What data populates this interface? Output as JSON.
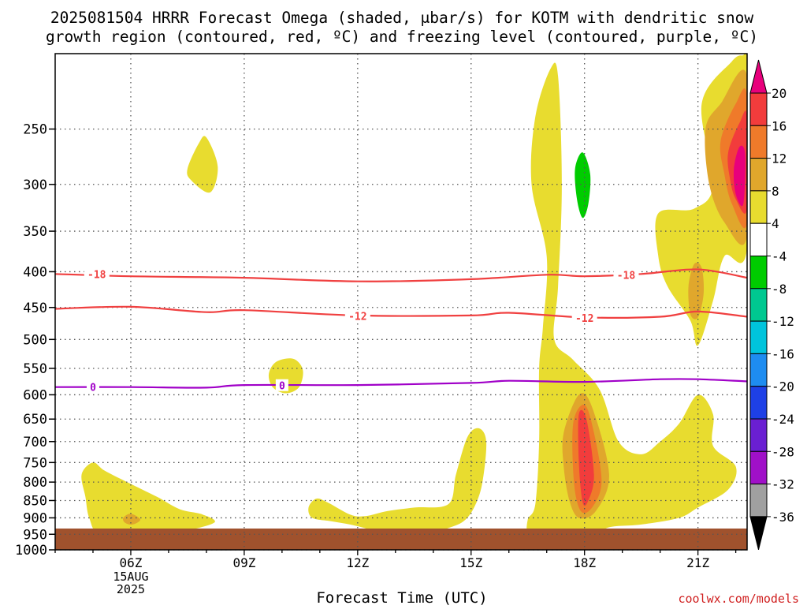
{
  "chart_data": {
    "type": "heatmap",
    "title": "2025081504 HRRR Forecast Omega (shaded, μbar/s) for KOTM with dendritic snow",
    "subtitle": "growth region (contoured, red, ºC) and freezing level (contoured, purple, ºC)",
    "xlabel": "Forecast Time (UTC)",
    "ylabel": "",
    "credit": "coolwx.com/models",
    "xlim": [
      4,
      22.3
    ],
    "ylim": [
      1000,
      195
    ],
    "y_scale": "log-pressure",
    "grid": true,
    "x_ticks": [
      {
        "value": 6,
        "label": "06Z",
        "sub": [
          "15AUG",
          "2025"
        ]
      },
      {
        "value": 9,
        "label": "09Z",
        "sub": []
      },
      {
        "value": 12,
        "label": "12Z",
        "sub": []
      },
      {
        "value": 15,
        "label": "15Z",
        "sub": []
      },
      {
        "value": 18,
        "label": "18Z",
        "sub": []
      },
      {
        "value": 21,
        "label": "21Z",
        "sub": []
      }
    ],
    "y_ticks": [
      250,
      300,
      350,
      400,
      450,
      500,
      550,
      600,
      650,
      700,
      750,
      800,
      850,
      900,
      950,
      1000
    ],
    "colorbar": {
      "bands": [
        {
          "from": 20,
          "to": 24,
          "color": "#e8007c"
        },
        {
          "from": 16,
          "to": 20,
          "color": "#f23c3c"
        },
        {
          "from": 12,
          "to": 16,
          "color": "#ef7a2a"
        },
        {
          "from": 8,
          "to": 12,
          "color": "#e0a72c"
        },
        {
          "from": 4,
          "to": 8,
          "color": "#e8dc2f"
        },
        {
          "from": -4,
          "to": 4,
          "color": "#ffffff"
        },
        {
          "from": -8,
          "to": -4,
          "color": "#00cc00"
        },
        {
          "from": -12,
          "to": -8,
          "color": "#00c890"
        },
        {
          "from": -16,
          "to": -12,
          "color": "#00c4dc"
        },
        {
          "from": -20,
          "to": -16,
          "color": "#1e8cf0"
        },
        {
          "from": -24,
          "to": -20,
          "color": "#1e40e6"
        },
        {
          "from": -28,
          "to": -24,
          "color": "#6a1fd2"
        },
        {
          "from": -32,
          "to": -28,
          "color": "#a010c8"
        },
        {
          "from": -36,
          "to": -32,
          "color": "#a0a0a0"
        },
        {
          "from": -40,
          "to": -36,
          "color": "#000000"
        }
      ],
      "labels": [
        20,
        16,
        12,
        8,
        4,
        -4,
        -8,
        -12,
        -16,
        -20,
        -24,
        -28,
        -32,
        -36
      ]
    },
    "ground_color": "#a0522d",
    "isotherms": [
      {
        "name": "-18",
        "color": "#f04040",
        "points": [
          [
            4,
            403
          ],
          [
            6,
            406
          ],
          [
            9,
            408
          ],
          [
            12,
            413
          ],
          [
            15,
            410
          ],
          [
            17,
            404
          ],
          [
            18,
            406
          ],
          [
            19.5,
            403
          ],
          [
            21,
            397
          ],
          [
            22.3,
            408
          ]
        ],
        "labels": [
          [
            5.1,
            403
          ],
          [
            19.1,
            404
          ]
        ]
      },
      {
        "name": "-12",
        "color": "#f04040",
        "points": [
          [
            4,
            452
          ],
          [
            6,
            449
          ],
          [
            8,
            457
          ],
          [
            9,
            454
          ],
          [
            12,
            462
          ],
          [
            15,
            462
          ],
          [
            16,
            458
          ],
          [
            18,
            465
          ],
          [
            20,
            464
          ],
          [
            21,
            456
          ],
          [
            22.3,
            464
          ]
        ],
        "labels": [
          [
            12,
            463
          ],
          [
            18,
            466
          ]
        ]
      },
      {
        "name": "0",
        "color": "#a000c8",
        "points": [
          [
            4,
            585
          ],
          [
            6,
            585
          ],
          [
            8,
            586
          ],
          [
            9,
            581
          ],
          [
            12,
            581
          ],
          [
            15,
            577
          ],
          [
            16,
            573
          ],
          [
            18,
            575
          ],
          [
            20,
            570
          ],
          [
            21,
            570
          ],
          [
            22.3,
            574
          ]
        ],
        "labels": [
          [
            5,
            585
          ],
          [
            10,
            582
          ]
        ]
      }
    ],
    "regions": [
      {
        "level": 4,
        "points": [
          [
            7.5,
            285
          ],
          [
            7.8,
            262
          ],
          [
            8.0,
            257
          ],
          [
            8.3,
            283
          ],
          [
            8.1,
            308
          ],
          [
            7.6,
            296
          ]
        ]
      },
      {
        "level": 4,
        "points": [
          [
            9.65,
            560
          ],
          [
            9.85,
            538
          ],
          [
            10.3,
            533
          ],
          [
            10.55,
            553
          ],
          [
            10.45,
            585
          ],
          [
            10.1,
            597
          ],
          [
            9.75,
            585
          ]
        ]
      },
      {
        "level": 4,
        "points": [
          [
            4.7,
            780
          ],
          [
            5.0,
            750
          ],
          [
            5.3,
            770
          ],
          [
            5.9,
            800
          ],
          [
            6.7,
            840
          ],
          [
            7.3,
            875
          ],
          [
            7.9,
            890
          ],
          [
            8.2,
            915
          ],
          [
            7.2,
            945
          ],
          [
            6.2,
            960
          ],
          [
            5.2,
            955
          ],
          [
            4.9,
            900
          ],
          [
            4.8,
            840
          ]
        ]
      },
      {
        "level": 8,
        "points": [
          [
            5.8,
            900
          ],
          [
            6.0,
            888
          ],
          [
            6.25,
            905
          ],
          [
            6.05,
            920
          ],
          [
            5.85,
            915
          ]
        ]
      },
      {
        "level": 4,
        "points": [
          [
            10.7,
            870
          ],
          [
            10.9,
            845
          ],
          [
            11.2,
            855
          ],
          [
            11.8,
            890
          ],
          [
            12.2,
            895
          ],
          [
            12.8,
            880
          ],
          [
            13.5,
            870
          ],
          [
            14.4,
            860
          ],
          [
            14.6,
            780
          ],
          [
            14.9,
            690
          ],
          [
            15.2,
            670
          ],
          [
            15.4,
            700
          ],
          [
            15.3,
            800
          ],
          [
            15.1,
            865
          ],
          [
            14.8,
            910
          ],
          [
            14.3,
            935
          ],
          [
            13.6,
            965
          ],
          [
            12.8,
            960
          ],
          [
            12.3,
            935
          ],
          [
            11.8,
            920
          ],
          [
            11.3,
            910
          ],
          [
            10.8,
            900
          ]
        ]
      },
      {
        "level": 4,
        "points": [
          [
            16.5,
            905
          ],
          [
            16.7,
            860
          ],
          [
            16.8,
            700
          ],
          [
            16.8,
            550
          ],
          [
            16.9,
            480
          ],
          [
            17.0,
            380
          ],
          [
            16.6,
            300
          ],
          [
            16.7,
            240
          ],
          [
            17.1,
            205
          ],
          [
            17.3,
            210
          ],
          [
            17.4,
            300
          ],
          [
            17.3,
            420
          ],
          [
            17.2,
            500
          ],
          [
            17.7,
            535
          ],
          [
            18.4,
            590
          ],
          [
            18.9,
            700
          ],
          [
            19.5,
            730
          ],
          [
            20.0,
            700
          ],
          [
            20.5,
            660
          ],
          [
            21.0,
            600
          ],
          [
            21.4,
            640
          ],
          [
            21.4,
            710
          ],
          [
            22.0,
            760
          ],
          [
            21.8,
            820
          ],
          [
            21.0,
            870
          ],
          [
            20.5,
            900
          ],
          [
            19.5,
            920
          ],
          [
            18.6,
            930
          ],
          [
            18.2,
            970
          ],
          [
            17.8,
            950
          ],
          [
            17.2,
            940
          ],
          [
            16.8,
            950
          ],
          [
            16.5,
            955
          ]
        ]
      },
      {
        "level": 8,
        "points": [
          [
            17.45,
            680
          ],
          [
            17.85,
            600
          ],
          [
            18.2,
            625
          ],
          [
            18.65,
            780
          ],
          [
            18.3,
            880
          ],
          [
            17.85,
            900
          ],
          [
            17.6,
            850
          ],
          [
            17.45,
            760
          ]
        ]
      },
      {
        "level": 12,
        "points": [
          [
            17.7,
            660
          ],
          [
            18.0,
            620
          ],
          [
            18.25,
            680
          ],
          [
            18.45,
            800
          ],
          [
            18.2,
            870
          ],
          [
            17.9,
            880
          ],
          [
            17.72,
            800
          ]
        ]
      },
      {
        "level": 16,
        "points": [
          [
            17.85,
            640
          ],
          [
            18.05,
            650
          ],
          [
            18.25,
            780
          ],
          [
            18.1,
            850
          ],
          [
            17.95,
            855
          ],
          [
            17.85,
            750
          ]
        ]
      },
      {
        "level": 4,
        "points": [
          [
            19.95,
            330
          ],
          [
            20.9,
            325
          ],
          [
            21.4,
            300
          ],
          [
            21.1,
            230
          ],
          [
            21.9,
            200
          ],
          [
            22.2,
            196
          ],
          [
            22.3,
            196
          ],
          [
            22.3,
            370
          ],
          [
            21.7,
            380
          ],
          [
            21.4,
            440
          ],
          [
            21.0,
            510
          ],
          [
            20.8,
            470
          ],
          [
            20.2,
            420
          ],
          [
            19.95,
            380
          ]
        ]
      },
      {
        "level": 8,
        "points": [
          [
            20.75,
            420
          ],
          [
            20.9,
            390
          ],
          [
            21.1,
            395
          ],
          [
            21.15,
            430
          ],
          [
            21.0,
            465
          ],
          [
            20.8,
            460
          ]
        ]
      },
      {
        "level": 8,
        "points": [
          [
            21.2,
            250
          ],
          [
            21.6,
            230
          ],
          [
            22.3,
            210
          ],
          [
            22.3,
            355
          ],
          [
            21.7,
            340
          ],
          [
            21.3,
            300
          ]
        ]
      },
      {
        "level": 12,
        "points": [
          [
            21.6,
            260
          ],
          [
            22.0,
            230
          ],
          [
            22.3,
            225
          ],
          [
            22.3,
            340
          ],
          [
            21.9,
            320
          ],
          [
            21.7,
            290
          ]
        ]
      },
      {
        "level": 16,
        "points": [
          [
            21.8,
            270
          ],
          [
            22.1,
            245
          ],
          [
            22.3,
            240
          ],
          [
            22.3,
            325
          ],
          [
            22.0,
            315
          ],
          [
            21.85,
            295
          ]
        ]
      },
      {
        "level": 20,
        "points": [
          [
            21.95,
            285
          ],
          [
            22.1,
            265
          ],
          [
            22.25,
            272
          ],
          [
            22.2,
            320
          ],
          [
            22.0,
            310
          ]
        ]
      },
      {
        "level": -4,
        "points": [
          [
            7.65,
            695
          ],
          [
            7.85,
            660
          ],
          [
            8.0,
            650
          ],
          [
            8.25,
            678
          ],
          [
            8.4,
            695
          ],
          [
            8.2,
            730
          ],
          [
            7.95,
            745
          ],
          [
            7.75,
            725
          ]
        ]
      },
      {
        "level": -4,
        "points": [
          [
            17.6,
            265
          ],
          [
            17.7,
            252
          ],
          [
            17.95,
            242
          ],
          [
            18.4,
            262
          ],
          [
            18.9,
            290
          ],
          [
            19.0,
            310
          ],
          [
            18.6,
            340
          ],
          [
            18.2,
            370
          ],
          [
            18.0,
            405
          ],
          [
            17.95,
            380
          ],
          [
            17.85,
            330
          ],
          [
            17.7,
            300
          ],
          [
            17.6,
            280
          ]
        ]
      },
      {
        "level": -8,
        "points": [
          [
            17.75,
            285
          ],
          [
            17.95,
            270
          ],
          [
            18.15,
            290
          ],
          [
            18.1,
            320
          ],
          [
            17.95,
            335
          ],
          [
            17.8,
            315
          ]
        ]
      },
      {
        "level": -4,
        "points": [
          [
            22.3,
            445
          ],
          [
            22.1,
            460
          ],
          [
            22.0,
            480
          ],
          [
            22.2,
            510
          ],
          [
            22.3,
            515
          ]
        ]
      }
    ]
  }
}
